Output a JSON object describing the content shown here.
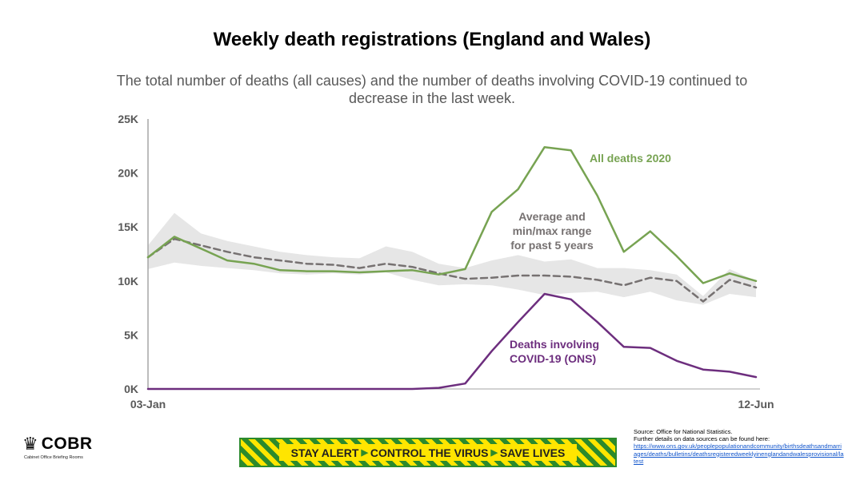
{
  "slide": {
    "title": "Weekly death registrations (England and Wales)",
    "subtitle": "The total number of deaths (all causes) and the number of deaths involving COVID-19 continued to decrease in the last week."
  },
  "chart_data": {
    "type": "line",
    "x_start_label": "03-Jan",
    "x_end_label": "12-Jun",
    "weeks": 24,
    "ylim": [
      0,
      25000
    ],
    "yticks": [
      0,
      5000,
      10000,
      15000,
      20000,
      25000
    ],
    "ytick_labels": [
      "0K",
      "5K",
      "10K",
      "15K",
      "20K",
      "25K"
    ],
    "series": [
      {
        "name": "All deaths 2020",
        "label": "All deaths 2020",
        "color": "#77a352",
        "values": [
          12200,
          14100,
          13000,
          11900,
          11600,
          11000,
          10900,
          10900,
          10800,
          10900,
          11000,
          10600,
          11100,
          16400,
          18500,
          22400,
          22100,
          17900,
          12700,
          14600,
          12300,
          9800,
          10700,
          10000
        ]
      },
      {
        "name": "Average of past 5 years",
        "label": "Average and min/max range for past 5 years",
        "color": "#767171",
        "values": [
          12200,
          13900,
          13300,
          12700,
          12200,
          11900,
          11600,
          11500,
          11200,
          11600,
          11300,
          10700,
          10200,
          10300,
          10500,
          10500,
          10400,
          10100,
          9600,
          10300,
          10000,
          8100,
          10100,
          9400
        ]
      },
      {
        "name": "Past 5 years range",
        "label": "min/max range",
        "color": "#e6e6e6",
        "min": [
          11100,
          11700,
          11400,
          11200,
          11000,
          10700,
          10600,
          10700,
          10600,
          10800,
          10100,
          9600,
          9700,
          9600,
          9200,
          8700,
          8900,
          9000,
          8500,
          9000,
          8200,
          7800,
          8800,
          8500
        ],
        "max": [
          13300,
          16300,
          14400,
          13700,
          13200,
          12700,
          12400,
          12200,
          12100,
          13200,
          12700,
          11600,
          11200,
          11900,
          12400,
          11800,
          12000,
          11200,
          11200,
          11000,
          10600,
          8600,
          11100,
          10000
        ]
      },
      {
        "name": "Deaths involving COVID-19 (ONS)",
        "label": "Deaths involving COVID-19 (ONS)",
        "color": "#6d2e7e",
        "values": [
          0,
          0,
          0,
          0,
          0,
          0,
          0,
          0,
          0,
          0,
          0,
          100,
          500,
          3500,
          6200,
          8800,
          8300,
          6200,
          3900,
          3800,
          2600,
          1800,
          1600,
          1100
        ]
      }
    ],
    "annotations": [
      {
        "text_lines": [
          "All deaths 2020"
        ],
        "color": "#77a352"
      },
      {
        "text_lines": [
          "Average and",
          "min/max range",
          "for past 5 years"
        ],
        "color": "#767171"
      },
      {
        "text_lines": [
          "Deaths involving",
          "COVID-19 (ONS)"
        ],
        "color": "#6d2e7e"
      }
    ]
  },
  "footer": {
    "logo_name": "COBR",
    "logo_subtitle": "Cabinet Office Briefing Rooms",
    "banner": {
      "part1": "STAY ALERT",
      "part2": "CONTROL THE VIRUS",
      "part3": "SAVE LIVES",
      "separator": "▶"
    },
    "source_line1": "Source: Office for National Statistics.",
    "source_line2": "Further details on data sources can be found here:",
    "source_url": "https://www.ons.gov.uk/peoplepopulationandcommunity/birthsdeathsandmarriages/deaths/bulletins/deathsregisteredweeklyinenglandandwalesprovisional/latest"
  }
}
